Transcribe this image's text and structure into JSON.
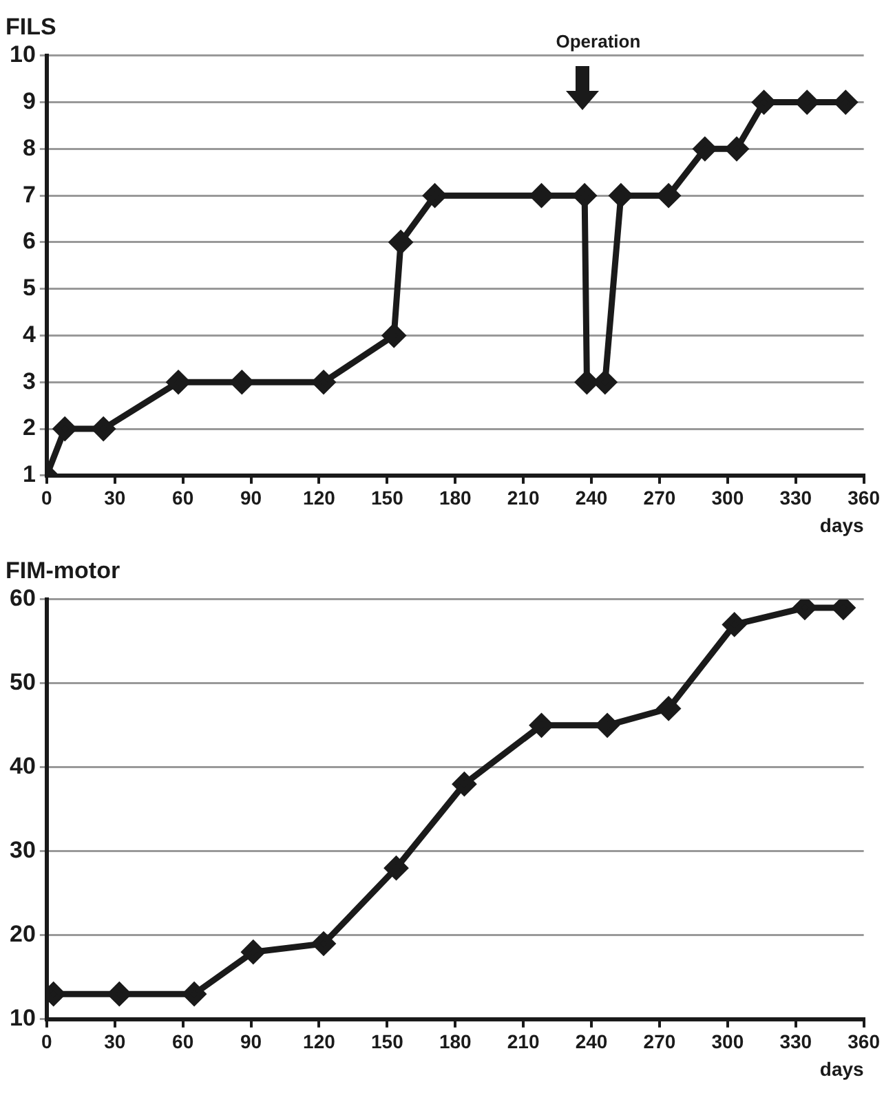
{
  "chart_data": [
    {
      "type": "line",
      "title": "FILS",
      "xlabel": "days",
      "x": [
        0,
        8,
        25,
        58,
        86,
        122,
        153,
        156,
        171,
        218,
        237,
        238,
        246,
        253,
        274,
        290,
        304,
        316,
        335,
        352
      ],
      "series": [
        {
          "color": "#1a1a1a",
          "values": [
            1,
            2,
            2,
            3,
            3,
            3,
            4,
            6,
            7,
            7,
            7,
            3,
            3,
            7,
            7,
            8,
            8,
            9,
            9,
            9
          ]
        }
      ],
      "xlim": [
        0,
        360
      ],
      "xticks": [
        0,
        30,
        60,
        90,
        120,
        150,
        180,
        210,
        240,
        270,
        300,
        330,
        360
      ],
      "ylim": [
        1,
        10
      ],
      "yticks": [
        1,
        2,
        3,
        4,
        5,
        6,
        7,
        8,
        9,
        10
      ],
      "grid": "y",
      "legend": false,
      "marker": "diamond",
      "line_style": "solid",
      "annotations": [
        "Operation"
      ]
    },
    {
      "type": "line",
      "title": "FIM-motor",
      "xlabel": "days",
      "x": [
        3,
        32,
        65,
        91,
        122,
        154,
        184,
        218,
        247,
        274,
        303,
        334,
        351
      ],
      "series": [
        {
          "color": "#1a1a1a",
          "values": [
            13,
            13,
            13,
            18,
            19,
            28,
            38,
            45,
            45,
            47,
            57,
            59,
            59
          ]
        }
      ],
      "xlim": [
        0,
        360
      ],
      "xticks": [
        0,
        30,
        60,
        90,
        120,
        150,
        180,
        210,
        240,
        270,
        300,
        330,
        360
      ],
      "ylim": [
        10,
        60
      ],
      "yticks": [
        10,
        20,
        30,
        40,
        50,
        60
      ],
      "grid": "y",
      "legend": false,
      "marker": "diamond",
      "line_style": "solid"
    }
  ]
}
